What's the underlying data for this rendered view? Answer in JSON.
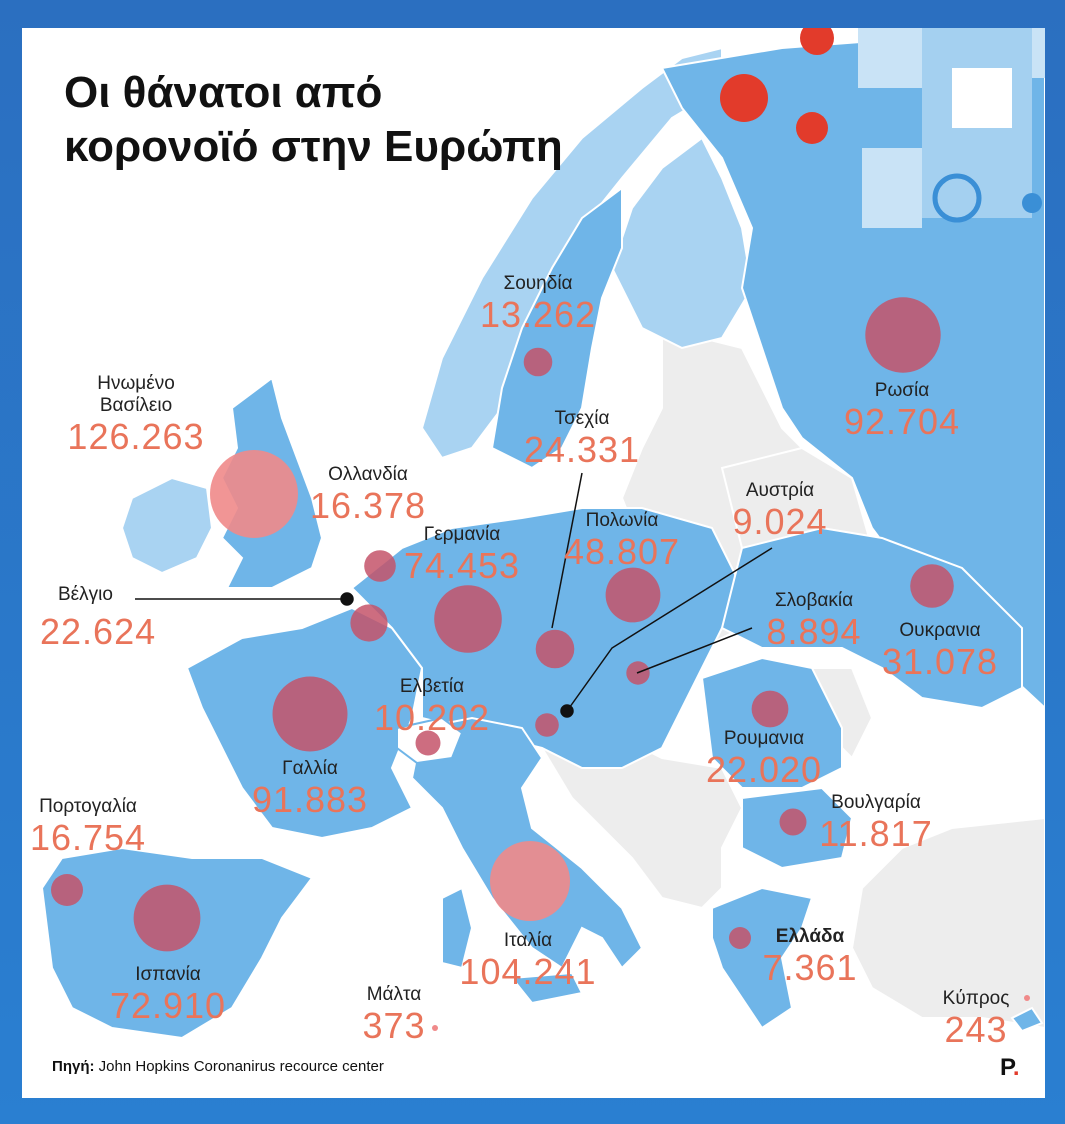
{
  "title": {
    "line1": "Οι θάνατοι από",
    "line2": "κορονοϊό στην Ευρώπη"
  },
  "source": {
    "label": "Πηγή:",
    "text": "John Hopkins Coronanirus recource center"
  },
  "logo": {
    "letter": "P",
    "dot": "."
  },
  "colors": {
    "land_highlight": "#6fb5e8",
    "land_other": "#ededed",
    "land_light": "#a9d3f2",
    "bubble": "#c4536a",
    "bubble_uk_italy": "#f08a8a",
    "value": "#e9745a"
  },
  "countries": [
    {
      "key": "uk",
      "name_lines": [
        "Ηνωμένο",
        "Βασίλειο"
      ],
      "deaths": "126.263",
      "deaths_num": 126263
    },
    {
      "key": "sweden",
      "name_lines": [
        "Σουηδία"
      ],
      "deaths": "13.262",
      "deaths_num": 13262
    },
    {
      "key": "russia",
      "name_lines": [
        "Ρωσία"
      ],
      "deaths": "92.704",
      "deaths_num": 92704
    },
    {
      "key": "czechia",
      "name_lines": [
        "Τσεχία"
      ],
      "deaths": "24.331",
      "deaths_num": 24331
    },
    {
      "key": "netherlands",
      "name_lines": [
        "Ολλανδία"
      ],
      "deaths": "16.378",
      "deaths_num": 16378
    },
    {
      "key": "austria",
      "name_lines": [
        "Αυστρία"
      ],
      "deaths": "9.024",
      "deaths_num": 9024
    },
    {
      "key": "germany",
      "name_lines": [
        "Γερμανία"
      ],
      "deaths": "74.453",
      "deaths_num": 74453
    },
    {
      "key": "poland",
      "name_lines": [
        "Πολωνία"
      ],
      "deaths": "48.807",
      "deaths_num": 48807
    },
    {
      "key": "belgium",
      "name_lines": [
        "Βέλγιο"
      ],
      "deaths": "22.624",
      "deaths_num": 22624
    },
    {
      "key": "slovakia",
      "name_lines": [
        "Σλοβακία"
      ],
      "deaths": "8.894",
      "deaths_num": 8894
    },
    {
      "key": "ukraine",
      "name_lines": [
        "Ουκρανια"
      ],
      "deaths": "31.078",
      "deaths_num": 31078
    },
    {
      "key": "switzerland",
      "name_lines": [
        "Ελβετία"
      ],
      "deaths": "10.202",
      "deaths_num": 10202
    },
    {
      "key": "france",
      "name_lines": [
        "Γαλλία"
      ],
      "deaths": "91.883",
      "deaths_num": 91883
    },
    {
      "key": "romania",
      "name_lines": [
        "Ρουμανια"
      ],
      "deaths": "22.020",
      "deaths_num": 22020
    },
    {
      "key": "portugal",
      "name_lines": [
        "Πορτογαλία"
      ],
      "deaths": "16.754",
      "deaths_num": 16754
    },
    {
      "key": "bulgaria",
      "name_lines": [
        "Βουλγαρία"
      ],
      "deaths": "11.817",
      "deaths_num": 11817
    },
    {
      "key": "italy",
      "name_lines": [
        "Ιταλία"
      ],
      "deaths": "104.241",
      "deaths_num": 104241
    },
    {
      "key": "greece",
      "name_lines": [
        "Ελλάδα"
      ],
      "deaths": "7.361",
      "deaths_num": 7361,
      "bold": true
    },
    {
      "key": "spain",
      "name_lines": [
        "Ισπανία"
      ],
      "deaths": "72.910",
      "deaths_num": 72910
    },
    {
      "key": "malta",
      "name_lines": [
        "Μάλτα"
      ],
      "deaths": "373",
      "deaths_num": 373
    },
    {
      "key": "cyprus",
      "name_lines": [
        "Κύπρος"
      ],
      "deaths": "243",
      "deaths_num": 243
    }
  ]
}
